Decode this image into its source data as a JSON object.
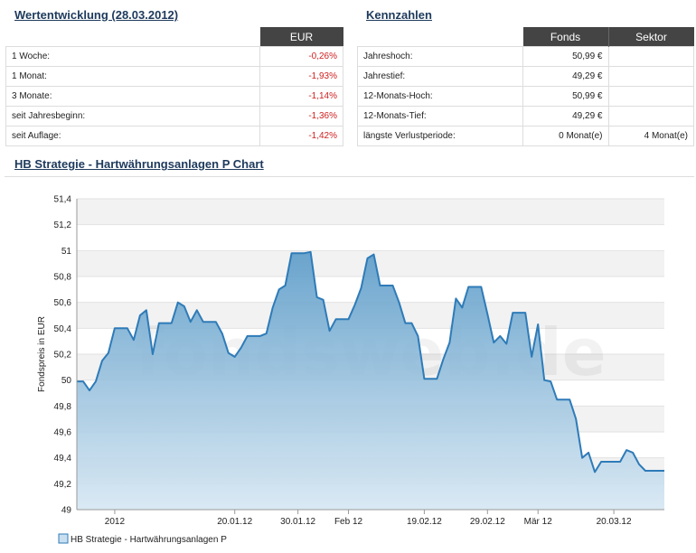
{
  "wertentwicklung": {
    "title": "Wertentwicklung (28.03.2012)",
    "currency_header": "EUR",
    "rows": [
      {
        "label": "1 Woche:",
        "value": "-0,26%"
      },
      {
        "label": "1 Monat:",
        "value": "-1,93%"
      },
      {
        "label": "3 Monate:",
        "value": "-1,14%"
      },
      {
        "label": "seit Jahresbeginn:",
        "value": "-1,36%"
      },
      {
        "label": "seit Auflage:",
        "value": "-1,42%"
      }
    ]
  },
  "kennzahlen": {
    "title": "Kennzahlen",
    "col_fonds": "Fonds",
    "col_sektor": "Sektor",
    "rows": [
      {
        "label": "Jahreshoch:",
        "fonds": "50,99 €",
        "sektor": ""
      },
      {
        "label": "Jahrestief:",
        "fonds": "49,29 €",
        "sektor": ""
      },
      {
        "label": "12-Monats-Hoch:",
        "fonds": "50,99 €",
        "sektor": ""
      },
      {
        "label": "12-Monats-Tief:",
        "fonds": "49,29 €",
        "sektor": ""
      },
      {
        "label": "längste Verlustperiode:",
        "fonds": "0 Monat(e)",
        "sektor": "4 Monat(e)"
      }
    ]
  },
  "chart_title": "HB Strategie - Hartwährungsanlagen P Chart",
  "watermark": "fondsweb.de",
  "colors": {
    "line": "#2e7bb8",
    "fill_top": "#5b9bc8",
    "fill_bottom": "#d6e7f3",
    "band": "#f2f2f2"
  },
  "chart_data": {
    "type": "area",
    "ylabel": "Fondspreis in EUR",
    "ylim": [
      49,
      51.4
    ],
    "yticks": [
      "49",
      "49,2",
      "49,4",
      "49,6",
      "49,8",
      "50",
      "50,2",
      "50,4",
      "50,6",
      "50,8",
      "51",
      "51,2",
      "51,4"
    ],
    "xlim": [
      "2011-12-26",
      "2012-03-28"
    ],
    "xticks": [
      {
        "date": "2012-01-01",
        "label": "2012"
      },
      {
        "date": "2012-01-20",
        "label": "20.01.12"
      },
      {
        "date": "2012-01-30",
        "label": "30.01.12"
      },
      {
        "date": "2012-02-07",
        "label": "Feb 12"
      },
      {
        "date": "2012-02-19",
        "label": "19.02.12"
      },
      {
        "date": "2012-02-29",
        "label": "29.02.12"
      },
      {
        "date": "2012-03-08",
        "label": "Mär 12"
      },
      {
        "date": "2012-03-20",
        "label": "20.03.12"
      }
    ],
    "legend": "HB Strategie - Hartwährungsanlagen P",
    "grid": true,
    "series": [
      {
        "name": "HB Strategie - Hartwährungsanlagen P",
        "dates": [
          "2011-12-26",
          "2011-12-27",
          "2011-12-28",
          "2011-12-29",
          "2011-12-30",
          "2011-12-31",
          "2012-01-01",
          "2012-01-02",
          "2012-01-03",
          "2012-01-04",
          "2012-01-05",
          "2012-01-06",
          "2012-01-07",
          "2012-01-08",
          "2012-01-09",
          "2012-01-10",
          "2012-01-11",
          "2012-01-12",
          "2012-01-13",
          "2012-01-14",
          "2012-01-15",
          "2012-01-16",
          "2012-01-17",
          "2012-01-18",
          "2012-01-19",
          "2012-01-20",
          "2012-01-21",
          "2012-01-22",
          "2012-01-23",
          "2012-01-24",
          "2012-01-25",
          "2012-01-26",
          "2012-01-27",
          "2012-01-28",
          "2012-01-29",
          "2012-01-30",
          "2012-01-31",
          "2012-02-01",
          "2012-02-02",
          "2012-02-03",
          "2012-02-04",
          "2012-02-05",
          "2012-02-06",
          "2012-02-07",
          "2012-02-08",
          "2012-02-09",
          "2012-02-10",
          "2012-02-11",
          "2012-02-12",
          "2012-02-13",
          "2012-02-14",
          "2012-02-15",
          "2012-02-16",
          "2012-02-17",
          "2012-02-18",
          "2012-02-19",
          "2012-02-20",
          "2012-02-21",
          "2012-02-22",
          "2012-02-23",
          "2012-02-24",
          "2012-02-25",
          "2012-02-26",
          "2012-02-27",
          "2012-02-28",
          "2012-02-29",
          "2012-03-01",
          "2012-03-02",
          "2012-03-03",
          "2012-03-04",
          "2012-03-05",
          "2012-03-06",
          "2012-03-07",
          "2012-03-08",
          "2012-03-09",
          "2012-03-10",
          "2012-03-11",
          "2012-03-12",
          "2012-03-13",
          "2012-03-14",
          "2012-03-15",
          "2012-03-16",
          "2012-03-17",
          "2012-03-18",
          "2012-03-19",
          "2012-03-20",
          "2012-03-21",
          "2012-03-22",
          "2012-03-23",
          "2012-03-24",
          "2012-03-25",
          "2012-03-26",
          "2012-03-27",
          "2012-03-28"
        ],
        "values": [
          49.99,
          49.99,
          49.92,
          49.99,
          50.15,
          50.21,
          50.4,
          50.4,
          50.4,
          50.31,
          50.5,
          50.54,
          50.2,
          50.44,
          50.44,
          50.44,
          50.6,
          50.57,
          50.45,
          50.54,
          50.45,
          50.45,
          50.45,
          50.36,
          50.21,
          50.18,
          50.25,
          50.34,
          50.34,
          50.34,
          50.36,
          50.56,
          50.7,
          50.73,
          50.98,
          50.98,
          50.98,
          50.99,
          50.64,
          50.62,
          50.38,
          50.47,
          50.47,
          50.47,
          50.58,
          50.71,
          50.94,
          50.97,
          50.73,
          50.73,
          50.73,
          50.6,
          50.44,
          50.44,
          50.34,
          50.01,
          50.01,
          50.01,
          50.16,
          50.29,
          50.63,
          50.56,
          50.72,
          50.72,
          50.72,
          50.51,
          50.29,
          50.34,
          50.28,
          50.52,
          50.52,
          50.52,
          50.18,
          50.43,
          50.0,
          49.99,
          49.85,
          49.85,
          49.85,
          49.7,
          49.4,
          49.44,
          49.29,
          49.37,
          49.37,
          49.37,
          49.37,
          49.46,
          49.44,
          49.35,
          49.3,
          49.3,
          49.3,
          49.3
        ]
      }
    ]
  }
}
